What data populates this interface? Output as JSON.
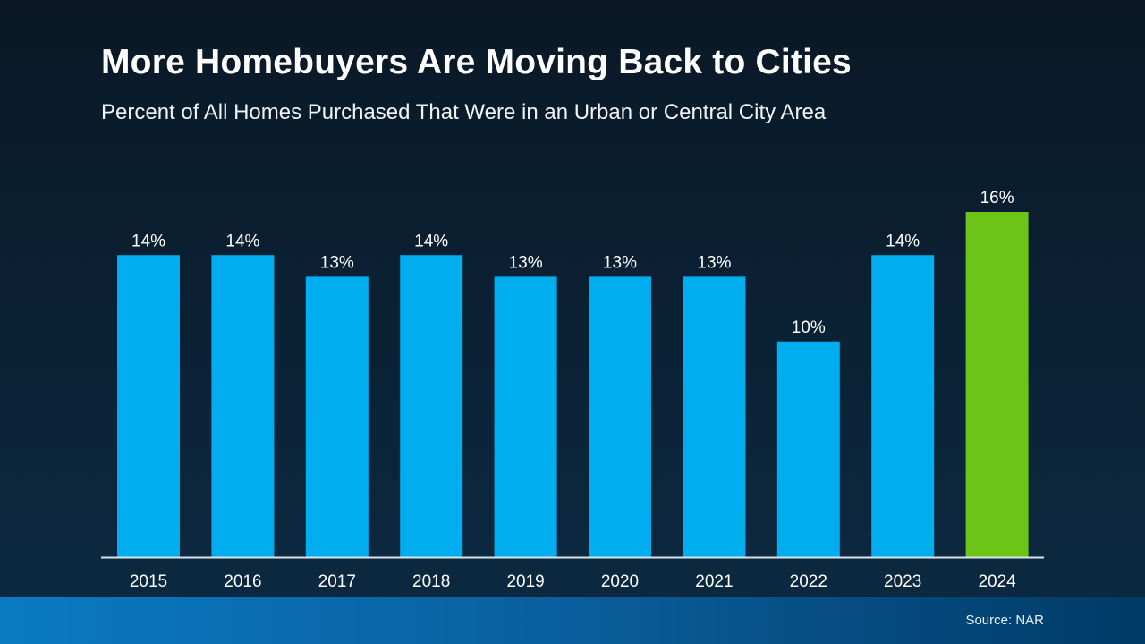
{
  "chart_data": {
    "type": "bar",
    "title": "More Homebuyers Are Moving Back to Cities",
    "subtitle": "Percent of All Homes Purchased That Were in an Urban or Central City Area",
    "categories": [
      "2015",
      "2016",
      "2017",
      "2018",
      "2019",
      "2020",
      "2021",
      "2022",
      "2023",
      "2024"
    ],
    "values": [
      14,
      14,
      13,
      14,
      13,
      13,
      13,
      10,
      14,
      16
    ],
    "data_labels": [
      "14%",
      "14%",
      "13%",
      "14%",
      "13%",
      "13%",
      "13%",
      "10%",
      "14%",
      "16%"
    ],
    "xlabel": "",
    "ylabel": "",
    "ylim": [
      0,
      16
    ],
    "grid": false,
    "colors": {
      "default": "#00aeef",
      "highlight": "#6cc417",
      "highlight_category": "2024",
      "axis": "#d8e4ee"
    }
  },
  "footer": {
    "source": "Source: NAR"
  }
}
